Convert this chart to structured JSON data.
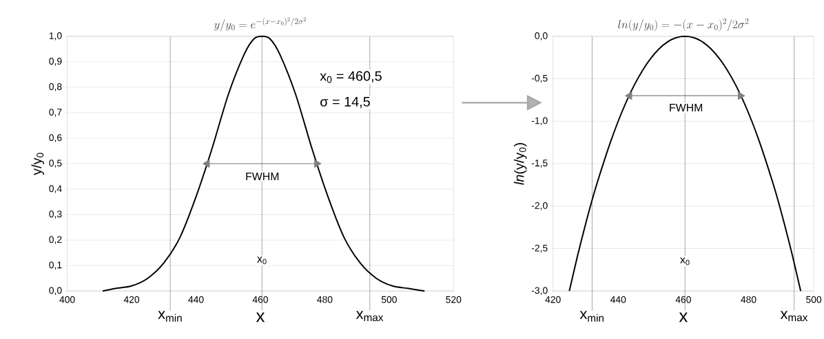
{
  "chart_data": [
    {
      "type": "line",
      "title": "y/y_0 = e^{-(x-x_0)^2/2\\sigma^2}",
      "xlabel": "x",
      "ylabel": "y/y$_{0}$",
      "xlim": [
        400,
        520
      ],
      "ylim": [
        0,
        1
      ],
      "xticks": [
        400,
        420,
        440,
        460,
        480,
        500,
        520
      ],
      "yticks": [
        {
          "value": 0,
          "label": "0,0"
        },
        {
          "value": 0.1,
          "label": "0,1"
        },
        {
          "value": 0.2,
          "label": "0,2"
        },
        {
          "value": 0.3,
          "label": "0,3"
        },
        {
          "value": 0.4,
          "label": "0,4"
        },
        {
          "value": 0.5,
          "label": "0,5"
        },
        {
          "value": 0.6,
          "label": "0,6"
        },
        {
          "value": 0.7,
          "label": "0,7"
        },
        {
          "value": 0.8,
          "label": "0,8"
        },
        {
          "value": 0.9,
          "label": "0,9"
        },
        {
          "value": 1,
          "label": "1,0"
        }
      ],
      "grid": "y",
      "series": [
        {
          "color": "#000000",
          "x": [
            411,
            415,
            420,
            425,
            430,
            435,
            440,
            445,
            450,
            455,
            458,
            460.5,
            463,
            466,
            471,
            476,
            481,
            486,
            491,
            496,
            501,
            506,
            511
          ],
          "values": [
            0.0,
            0.01,
            0.02,
            0.05,
            0.11,
            0.21,
            0.37,
            0.56,
            0.77,
            0.93,
            0.99,
            1.0,
            0.99,
            0.93,
            0.77,
            0.56,
            0.37,
            0.21,
            0.11,
            0.05,
            0.02,
            0.01,
            0.0
          ]
        },
        {
          "color": "#808080",
          "marker": "triangle",
          "x": [
            443.5,
            477.5
          ],
          "values": [
            0.5,
            0.5
          ]
        }
      ],
      "ref_lines": [
        {
          "axis": "x",
          "value": 460.5,
          "line_style": "dotted",
          "color": "#000000"
        },
        {
          "axis": "x",
          "value": 432,
          "label": "x$_{min}$",
          "line_style": "dotted",
          "color": "#000000"
        },
        {
          "axis": "x",
          "value": 494,
          "label": "x$_{max}$",
          "line_style": "dotted",
          "color": "#000000"
        }
      ],
      "annotations": [
        "x$_{0}$ = 460,5",
        "σ = 14,5",
        "FWHM",
        {
          "text": "x$_{0}$",
          "x": 460.5,
          "y": 0.12
        }
      ]
    },
    {
      "type": "line",
      "title": "ln(y/y_0) = -(x-x_0)^2/2\\sigma^2",
      "xlabel": "x",
      "ylabel": "*ln*(y/y$_{0}$)",
      "xlim": [
        420,
        500
      ],
      "ylim": [
        -3,
        0
      ],
      "xticks": [
        420,
        440,
        460,
        480,
        500
      ],
      "yticks": [
        {
          "value": -3,
          "label": "-3,0"
        },
        {
          "value": -2.5,
          "label": "-2,5"
        },
        {
          "value": -2,
          "label": "-2,0"
        },
        {
          "value": -1.5,
          "label": "-1,5"
        },
        {
          "value": -1,
          "label": "-1,0"
        },
        {
          "value": -0.5,
          "label": "-0,5"
        },
        {
          "value": 0,
          "label": "0,0"
        }
      ],
      "grid": "y",
      "series": [
        {
          "color": "#000000",
          "x": [
            425,
            427.5,
            430,
            432.5,
            435,
            437.5,
            440,
            442.5,
            445,
            447.5,
            450,
            452.5,
            455,
            457.5,
            460.5,
            463.5,
            466,
            468.5,
            471,
            473.5,
            476,
            478.5,
            481,
            483.5,
            486,
            488.5,
            491,
            493.5,
            496
          ],
          "values": [
            -3.0,
            -2.59,
            -2.21,
            -1.86,
            -1.55,
            -1.26,
            -1.0,
            -0.77,
            -0.57,
            -0.4,
            -0.26,
            -0.15,
            -0.07,
            -0.02,
            0.0,
            -0.02,
            -0.07,
            -0.15,
            -0.26,
            -0.4,
            -0.57,
            -0.77,
            -1.0,
            -1.26,
            -1.55,
            -1.86,
            -2.21,
            -2.59,
            -3.0
          ]
        },
        {
          "color": "#808080",
          "marker": "triangle",
          "x": [
            443.5,
            477.5
          ],
          "values": [
            -0.7,
            -0.7
          ]
        }
      ],
      "ref_lines": [
        {
          "axis": "x",
          "value": 460.5,
          "line_style": "dotted",
          "color": "#000000"
        },
        {
          "axis": "x",
          "value": 432,
          "label": "x$_{min}$",
          "line_style": "dotted",
          "color": "#000000"
        },
        {
          "axis": "x",
          "value": 494,
          "label": "x$_{max}$",
          "line_style": "dotted",
          "color": "#000000"
        }
      ],
      "annotations": [
        "FWHM",
        {
          "text": "x$_{0}$",
          "x": 460.5,
          "y": -2.65
        }
      ]
    }
  ]
}
